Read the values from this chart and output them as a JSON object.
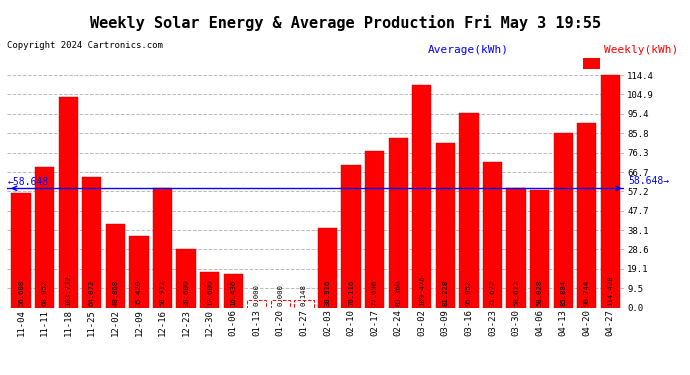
{
  "title": "Weekly Solar Energy & Average Production Fri May 3 19:55",
  "copyright": "Copyright 2024 Cartronics.com",
  "legend_average": "Average(kWh)",
  "legend_weekly": "Weekly(kWh)",
  "average_value": 58.648,
  "categories": [
    "11-04",
    "11-11",
    "11-18",
    "11-25",
    "12-02",
    "12-09",
    "12-16",
    "12-23",
    "12-30",
    "01-06",
    "01-13",
    "01-20",
    "01-27",
    "02-03",
    "02-10",
    "02-17",
    "02-24",
    "03-02",
    "03-09",
    "03-16",
    "03-23",
    "03-30",
    "04-06",
    "04-13",
    "04-20",
    "04-27"
  ],
  "values": [
    56.608,
    68.952,
    103.732,
    64.072,
    40.868,
    35.42,
    58.912,
    28.6,
    17.6,
    16.436,
    0.0,
    0.0,
    0.148,
    38.916,
    70.116,
    77.096,
    83.36,
    109.476,
    81.228,
    95.952,
    71.672,
    58.612,
    58.028,
    85.884,
    90.744,
    114.428
  ],
  "bar_color": "#ff0000",
  "bar_edge_color": "#bb0000",
  "avg_line_color": "#0000ff",
  "avg_line_color_hex": "#0000cc",
  "background_color": "#ffffff",
  "grid_color": "#bbbbbb",
  "yticks": [
    0.0,
    9.5,
    19.1,
    28.6,
    38.1,
    47.7,
    57.2,
    66.7,
    76.3,
    85.8,
    95.4,
    104.9,
    114.4
  ],
  "ylim_max": 120,
  "title_fontsize": 11,
  "tick_fontsize": 6.5,
  "bar_label_fontsize": 5.2,
  "avg_label_fontsize": 7,
  "copyright_fontsize": 6.5,
  "legend_fontsize": 8
}
